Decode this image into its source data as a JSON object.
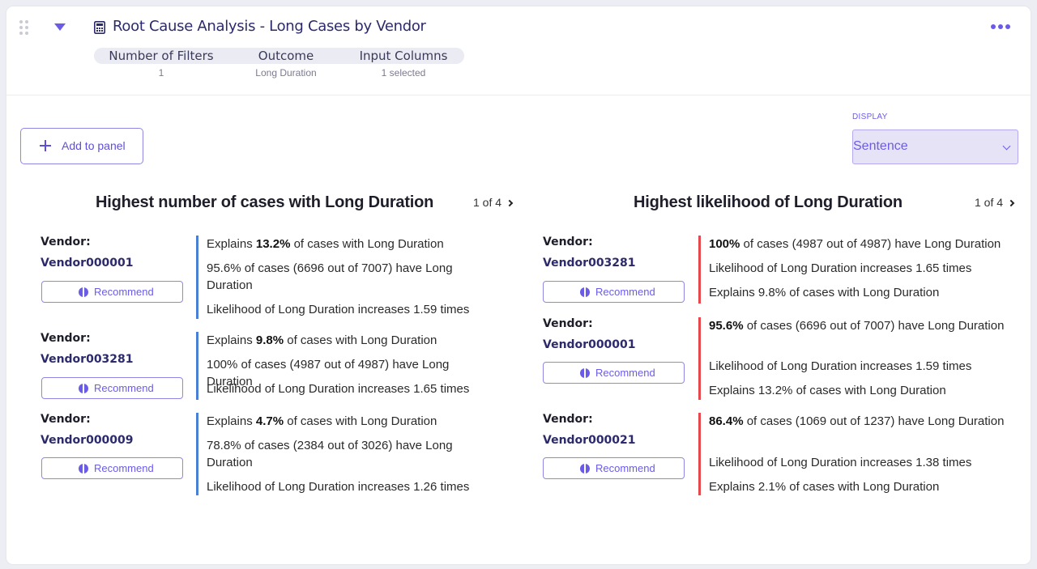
{
  "header": {
    "title": "Root Cause Analysis - Long Cases by Vendor",
    "meta": [
      {
        "label": "Number of Filters",
        "value": "1"
      },
      {
        "label": "Outcome",
        "value": "Long Duration"
      },
      {
        "label": "Input Columns",
        "value": "1 selected"
      }
    ]
  },
  "toolbar": {
    "add_label": "Add to panel",
    "display_label": "DISPLAY",
    "display_value": "Sentence"
  },
  "left_panel": {
    "title": "Highest number of cases with Long Duration",
    "pager": "1 of 4",
    "vendor_label": "Vendor:",
    "recommend_label": "Recommend",
    "items": [
      {
        "vendor": "Vendor000001",
        "lines": [
          {
            "pre": "Explains ",
            "bold": "13.2%",
            "post": " of cases with Long Duration"
          },
          {
            "pre": "95.6% of cases (6696 out of 7007) have Long Duration",
            "bold": "",
            "post": ""
          },
          {
            "pre": "Likelihood of Long Duration increases 1.59 times",
            "bold": "",
            "post": ""
          }
        ]
      },
      {
        "vendor": "Vendor003281",
        "lines": [
          {
            "pre": "Explains ",
            "bold": "9.8%",
            "post": " of cases with Long Duration"
          },
          {
            "pre": "100% of cases (4987 out of 4987) have Long Duration",
            "bold": "",
            "post": ""
          },
          {
            "pre": "Likelihood of Long Duration increases 1.65 times",
            "bold": "",
            "post": ""
          }
        ]
      },
      {
        "vendor": "Vendor000009",
        "lines": [
          {
            "pre": "Explains ",
            "bold": "4.7%",
            "post": " of cases with Long Duration"
          },
          {
            "pre": "78.8% of cases (2384 out of 3026) have Long Duration",
            "bold": "",
            "post": ""
          },
          {
            "pre": "Likelihood of Long Duration increases 1.26 times",
            "bold": "",
            "post": ""
          }
        ]
      }
    ]
  },
  "right_panel": {
    "title": "Highest likelihood of Long Duration",
    "pager": "1 of 4",
    "vendor_label": "Vendor:",
    "recommend_label": "Recommend",
    "items": [
      {
        "vendor": "Vendor003281",
        "lines": [
          {
            "pre": "",
            "bold": "100%",
            "post": " of cases (4987 out of 4987) have Long Duration"
          },
          {
            "pre": "Likelihood of Long Duration increases 1.65 times",
            "bold": "",
            "post": ""
          },
          {
            "pre": "Explains 9.8% of cases with Long Duration",
            "bold": "",
            "post": ""
          }
        ]
      },
      {
        "vendor": "Vendor000001",
        "lines": [
          {
            "pre": "",
            "bold": "95.6%",
            "post": " of cases (6696 out of 7007) have Long Duration"
          },
          {
            "pre": "Likelihood of Long Duration increases 1.59 times",
            "bold": "",
            "post": ""
          },
          {
            "pre": "Explains 13.2% of cases with Long Duration",
            "bold": "",
            "post": ""
          }
        ]
      },
      {
        "vendor": "Vendor000021",
        "lines": [
          {
            "pre": "",
            "bold": "86.4%",
            "post": " of cases (1069 out of 1237) have Long Duration"
          },
          {
            "pre": "Likelihood of Long Duration increases 1.38 times",
            "bold": "",
            "post": ""
          },
          {
            "pre": "Explains 2.1% of cases with Long Duration",
            "bold": "",
            "post": ""
          }
        ]
      }
    ]
  }
}
